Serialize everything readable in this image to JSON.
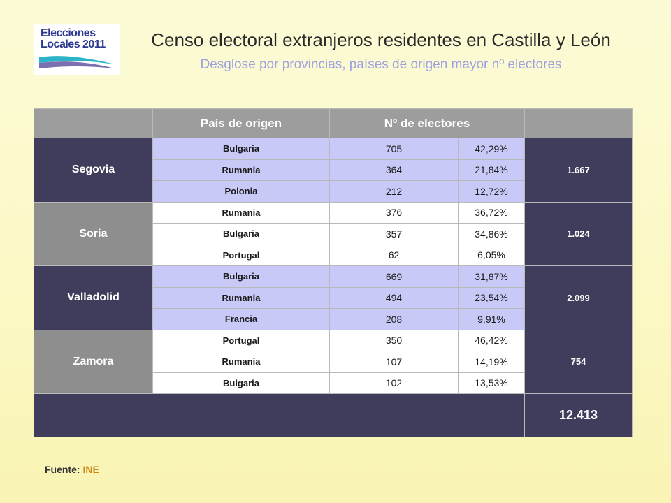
{
  "logo": {
    "line1": "Elecciones",
    "line2": "Locales 2011"
  },
  "title": "Censo electoral extranjeros residentes en Castilla y León",
  "subtitle": "Desglose por provincias, países de origen mayor nº electores",
  "table": {
    "headers": [
      "",
      "País de origen",
      "Nº de electores",
      "",
      ""
    ],
    "provinces": [
      {
        "name": "Segovia",
        "total": "1.667",
        "style": "dark",
        "rows": [
          {
            "country": "Bulgaria",
            "electors": "705",
            "pct": "42,29%"
          },
          {
            "country": "Rumania",
            "electors": "364",
            "pct": "21,84%"
          },
          {
            "country": "Polonia",
            "electors": "212",
            "pct": "12,72%"
          }
        ]
      },
      {
        "name": "Soria",
        "total": "1.024",
        "style": "gray",
        "rows": [
          {
            "country": "Rumania",
            "electors": "376",
            "pct": "36,72%"
          },
          {
            "country": "Bulgaria",
            "electors": "357",
            "pct": "34,86%"
          },
          {
            "country": "Portugal",
            "electors": "62",
            "pct": "6,05%"
          }
        ]
      },
      {
        "name": "Valladolid",
        "total": "2.099",
        "style": "dark",
        "rows": [
          {
            "country": "Bulgaria",
            "electors": "669",
            "pct": "31,87%"
          },
          {
            "country": "Rumania",
            "electors": "494",
            "pct": "23,54%"
          },
          {
            "country": "Francia",
            "electors": "208",
            "pct": "9,91%"
          }
        ]
      },
      {
        "name": "Zamora",
        "total": "754",
        "style": "gray",
        "rows": [
          {
            "country": "Portugal",
            "electors": "350",
            "pct": "46,42%"
          },
          {
            "country": "Rumania",
            "electors": "107",
            "pct": "14,19%"
          },
          {
            "country": "Bulgaria",
            "electors": "102",
            "pct": "13,53%"
          }
        ]
      }
    ],
    "grand_total": "12.413"
  },
  "source": {
    "label": "Fuente:",
    "value": "INE"
  },
  "colors": {
    "dark": "#3f3d5b",
    "gray": "#8e8e8e",
    "light_row": "#c9c9f8",
    "subtitle": "#9da1e0",
    "source_value": "#c98a1a"
  }
}
